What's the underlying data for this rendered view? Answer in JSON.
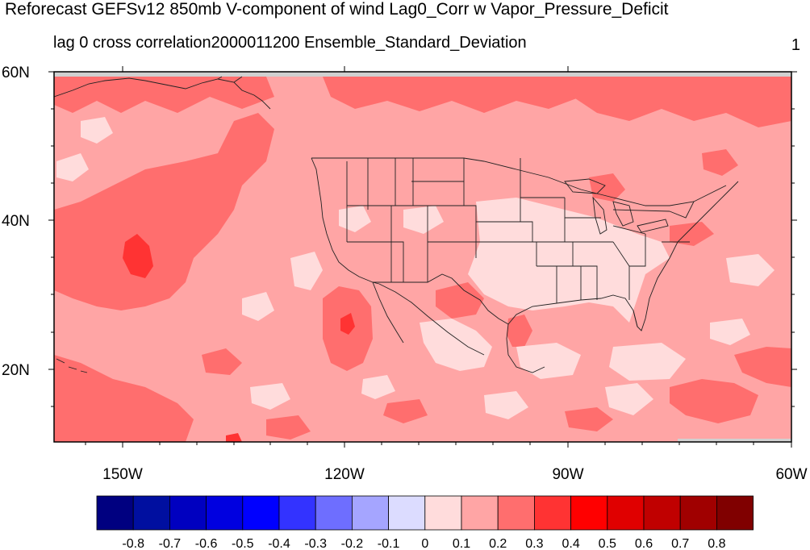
{
  "title": "Reforecast GEFSv12 850mb V-component of wind Lag0_Corr w Vapor_Pressure_Deficit",
  "subtitle": "lag 0 cross correlation2000011200 Ensemble_Standard_Deviation",
  "corner_label": "1",
  "map": {
    "lat_range": [
      10,
      60
    ],
    "lon_range": [
      -160,
      -60
    ],
    "lat_ticks": [
      "60N",
      "40N",
      "20N"
    ],
    "lon_ticks": [
      "150W",
      "120W",
      "90W",
      "60W"
    ],
    "region": "North Pacific and contiguous United States with state boundaries"
  },
  "colorbar": {
    "colors": [
      "#000080",
      "#000fa0",
      "#0000c0",
      "#0000e0",
      "#0000ff",
      "#3333ff",
      "#6e6eff",
      "#a5a5ff",
      "#dcdcff",
      "#ffdcdc",
      "#ffa5a5",
      "#ff6e6e",
      "#ff3333",
      "#ff0000",
      "#e00000",
      "#c00000",
      "#a00000",
      "#800000"
    ],
    "labels": [
      "-0.8",
      "-0.7",
      "-0.6",
      "-0.5",
      "-0.4",
      "-0.3",
      "-0.2",
      "-0.1",
      "0",
      "0.1",
      "0.2",
      "0.3",
      "0.4",
      "0.5",
      "0.6",
      "0.7",
      "0.8"
    ]
  }
}
